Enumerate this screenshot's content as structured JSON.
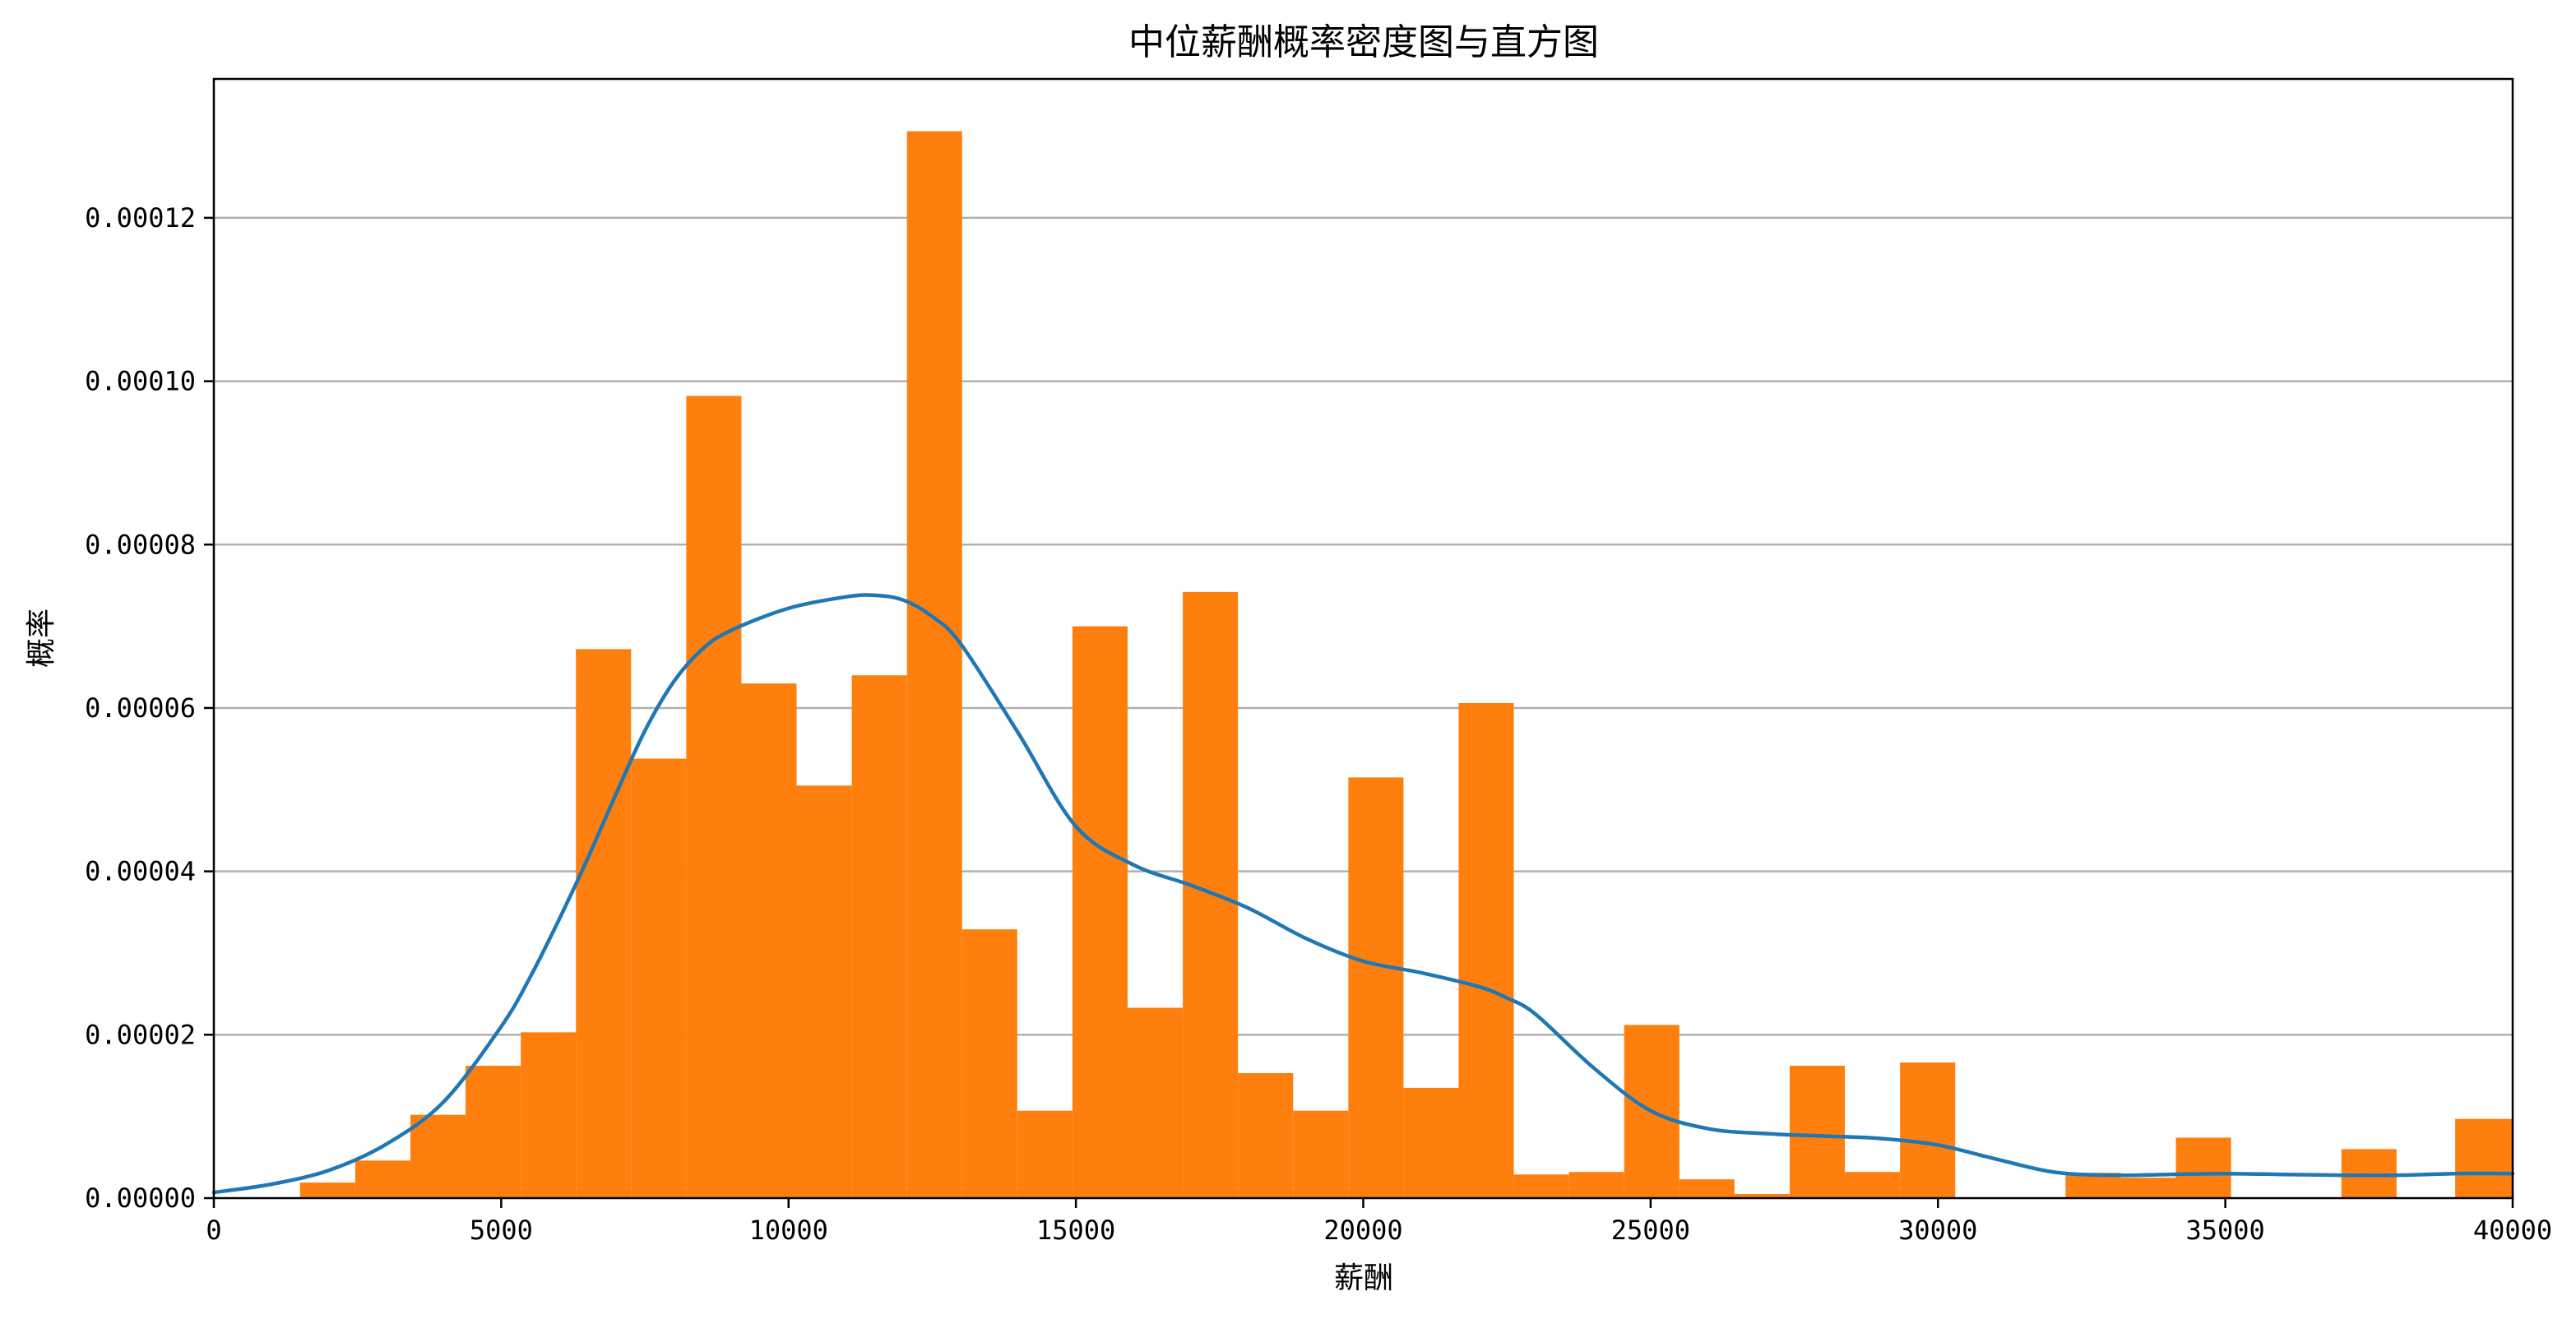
{
  "chart_data": {
    "type": "bar",
    "title": "中位薪酬概率密度图与直方图",
    "xlabel": "薪酬",
    "ylabel": "概率",
    "xlim": [
      0,
      40000
    ],
    "ylim": [
      0,
      0.000137
    ],
    "grid": "y-major",
    "x_ticks": [
      {
        "value": 0,
        "label": "0"
      },
      {
        "value": 5000,
        "label": "5000"
      },
      {
        "value": 10000,
        "label": "10000"
      },
      {
        "value": 15000,
        "label": "15000"
      },
      {
        "value": 20000,
        "label": "20000"
      },
      {
        "value": 25000,
        "label": "25000"
      },
      {
        "value": 30000,
        "label": "30000"
      },
      {
        "value": 35000,
        "label": "35000"
      },
      {
        "value": 40000,
        "label": "40000"
      }
    ],
    "y_ticks": [
      {
        "value": 0,
        "label": "0.00000"
      },
      {
        "value": 2e-05,
        "label": "0.00002"
      },
      {
        "value": 4e-05,
        "label": "0.00004"
      },
      {
        "value": 6e-05,
        "label": "0.00006"
      },
      {
        "value": 8e-05,
        "label": "0.00008"
      },
      {
        "value": 0.0001,
        "label": "0.00010"
      },
      {
        "value": 0.00012,
        "label": "0.00012"
      }
    ],
    "histogram": {
      "color": "#ff7f0e",
      "bins": [
        {
          "x0": 1500,
          "x1": 2460,
          "value": 1.9e-06
        },
        {
          "x0": 2460,
          "x1": 3420,
          "value": 4.6e-06
        },
        {
          "x0": 3420,
          "x1": 4380,
          "value": 1.02e-05
        },
        {
          "x0": 4380,
          "x1": 5340,
          "value": 1.62e-05
        },
        {
          "x0": 5340,
          "x1": 6300,
          "value": 2.03e-05
        },
        {
          "x0": 6300,
          "x1": 7260,
          "value": 6.72e-05
        },
        {
          "x0": 7260,
          "x1": 8220,
          "value": 5.38e-05
        },
        {
          "x0": 8220,
          "x1": 9180,
          "value": 9.82e-05
        },
        {
          "x0": 9180,
          "x1": 10140,
          "value": 6.3e-05
        },
        {
          "x0": 10140,
          "x1": 11100,
          "value": 5.05e-05
        },
        {
          "x0": 11100,
          "x1": 12060,
          "value": 6.4e-05
        },
        {
          "x0": 12060,
          "x1": 13020,
          "value": 0.0001306
        },
        {
          "x0": 13020,
          "x1": 13980,
          "value": 3.29e-05
        },
        {
          "x0": 13980,
          "x1": 14940,
          "value": 1.07e-05
        },
        {
          "x0": 14940,
          "x1": 15900,
          "value": 7e-05
        },
        {
          "x0": 15900,
          "x1": 16860,
          "value": 2.33e-05
        },
        {
          "x0": 16860,
          "x1": 17820,
          "value": 7.42e-05
        },
        {
          "x0": 17820,
          "x1": 18780,
          "value": 1.53e-05
        },
        {
          "x0": 18780,
          "x1": 19740,
          "value": 1.07e-05
        },
        {
          "x0": 19740,
          "x1": 20700,
          "value": 5.15e-05
        },
        {
          "x0": 20700,
          "x1": 21660,
          "value": 1.35e-05
        },
        {
          "x0": 21660,
          "x1": 22620,
          "value": 6.06e-05
        },
        {
          "x0": 22620,
          "x1": 23580,
          "value": 2.9e-06
        },
        {
          "x0": 23580,
          "x1": 24540,
          "value": 3.2e-06
        },
        {
          "x0": 24540,
          "x1": 25500,
          "value": 2.12e-05
        },
        {
          "x0": 25500,
          "x1": 26460,
          "value": 2.3e-06
        },
        {
          "x0": 26460,
          "x1": 27420,
          "value": 5e-07
        },
        {
          "x0": 27420,
          "x1": 28380,
          "value": 1.62e-05
        },
        {
          "x0": 28380,
          "x1": 29340,
          "value": 3.2e-06
        },
        {
          "x0": 29340,
          "x1": 30300,
          "value": 1.66e-05
        },
        {
          "x0": 32220,
          "x1": 33180,
          "value": 3.1e-06
        },
        {
          "x0": 33180,
          "x1": 34140,
          "value": 2.5e-06
        },
        {
          "x0": 34140,
          "x1": 35100,
          "value": 7.4e-06
        },
        {
          "x0": 37020,
          "x1": 37980,
          "value": 6e-06
        },
        {
          "x0": 39000,
          "x1": 40000,
          "value": 9.7e-06
        }
      ]
    },
    "kde": {
      "color": "#1f77b4",
      "x": [
        0,
        1000,
        2000,
        3000,
        4000,
        5000,
        5500,
        6000,
        6500,
        7000,
        7500,
        8000,
        8500,
        9000,
        10000,
        11000,
        11500,
        12000,
        12500,
        13000,
        14000,
        15000,
        16000,
        17000,
        18000,
        19000,
        20000,
        21000,
        22000,
        22500,
        23000,
        24000,
        25000,
        26000,
        27000,
        28000,
        29000,
        30000,
        31000,
        32000,
        33000,
        34000,
        35000,
        36000,
        37000,
        38000,
        39000,
        40000
      ],
      "y": [
        7e-07,
        1.7e-06,
        3.4e-06,
        6.6e-06,
        1.18e-05,
        2.1e-05,
        2.7e-05,
        3.4e-05,
        4.15e-05,
        4.95e-05,
        5.72e-05,
        6.32e-05,
        6.72e-05,
        6.95e-05,
        7.22e-05,
        7.36e-05,
        7.38e-05,
        7.32e-05,
        7.12e-05,
        6.78e-05,
        5.69e-05,
        4.55e-05,
        4.08e-05,
        3.83e-05,
        3.55e-05,
        3.18e-05,
        2.9e-05,
        2.76e-05,
        2.59e-05,
        2.45e-05,
        2.25e-05,
        1.6e-05,
        1.07e-05,
        8.5e-06,
        7.9e-06,
        7.6e-06,
        7.3e-06,
        6.5e-06,
        4.8e-06,
        3.2e-06,
        2.8e-06,
        2.9e-06,
        3e-06,
        2.9e-06,
        2.8e-06,
        2.8e-06,
        3e-06,
        3e-06
      ]
    }
  }
}
